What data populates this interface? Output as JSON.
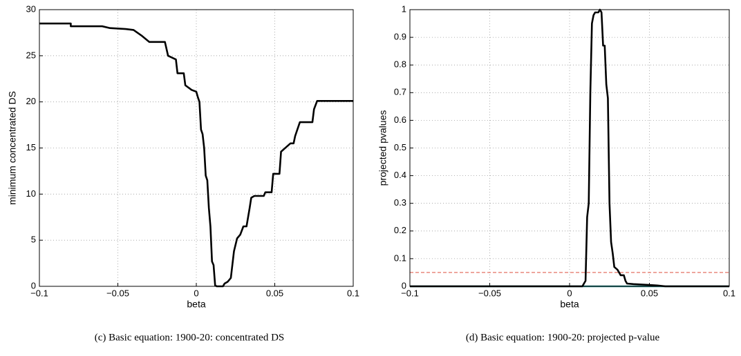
{
  "chart_data": [
    {
      "type": "line",
      "xlabel": "beta",
      "ylabel": "minimum concentrated DS",
      "caption": "(c) Basic equation: 1900-20: concentrated DS",
      "xlim": [
        -0.1,
        0.1
      ],
      "ylim": [
        0,
        30
      ],
      "xticks": [
        {
          "value": -0.1,
          "label": "−0.1"
        },
        {
          "value": -0.05,
          "label": "−0.05"
        },
        0,
        0.05,
        0.1
      ],
      "yticks": [
        0,
        5,
        10,
        15,
        20,
        25,
        30
      ],
      "grid": true,
      "series": [
        {
          "color": "#000000",
          "linestyle": "solid",
          "x": [
            -0.1,
            -0.08,
            -0.08,
            -0.06,
            -0.055,
            -0.045,
            -0.04,
            -0.035,
            -0.03,
            -0.02,
            -0.018,
            -0.013,
            -0.012,
            -0.008,
            -0.007,
            -0.003,
            0,
            0.001,
            0.002,
            0.003,
            0.004,
            0.005,
            0.006,
            0.007,
            0.008,
            0.009,
            0.01,
            0.011,
            0.012,
            0.013,
            0.017,
            0.018,
            0.02,
            0.022,
            0.024,
            0.026,
            0.028,
            0.03,
            0.032,
            0.034,
            0.035,
            0.037,
            0.043,
            0.044,
            0.048,
            0.049,
            0.053,
            0.054,
            0.058,
            0.06,
            0.062,
            0.063,
            0.066,
            0.074,
            0.075,
            0.077,
            0.1
          ],
          "values": [
            28.5,
            28.5,
            28.2,
            28.2,
            28.0,
            27.9,
            27.8,
            27.2,
            26.5,
            26.5,
            25,
            24.6,
            23.1,
            23.1,
            21.8,
            21.3,
            21.1,
            20.5,
            20,
            17,
            16.5,
            15,
            12,
            11.5,
            8.5,
            6.5,
            2.7,
            2.3,
            0.1,
            0,
            0,
            0.3,
            0.5,
            0.9,
            3.8,
            5.2,
            5.6,
            6.5,
            6.5,
            8.5,
            9.6,
            9.8,
            9.8,
            10.2,
            10.2,
            12.2,
            12.2,
            14.6,
            15.2,
            15.5,
            15.5,
            16.3,
            17.8,
            17.8,
            19.2,
            20.1,
            20.1
          ]
        }
      ]
    },
    {
      "type": "line",
      "xlabel": "beta",
      "ylabel": "projected pvalues",
      "caption": "(d) Basic equation: 1900-20: projected p-value",
      "xlim": [
        -0.1,
        0.1
      ],
      "ylim": [
        0,
        1
      ],
      "xticks": [
        {
          "value": -0.1,
          "label": "−0.1"
        },
        {
          "value": -0.05,
          "label": "−0.05"
        },
        0,
        0.05,
        0.1
      ],
      "yticks": [
        0,
        0.1,
        0.2,
        0.3,
        0.4,
        0.5,
        0.6,
        0.7,
        0.8,
        0.9,
        1
      ],
      "grid": true,
      "series": [
        {
          "color": "#2a8a8a",
          "linestyle": "solid",
          "x": [
            -0.1,
            0.1
          ],
          "values": [
            0,
            0
          ]
        },
        {
          "color": "#e06050",
          "linestyle": "dashed",
          "x": [
            -0.1,
            0.1
          ],
          "values": [
            0.05,
            0.05
          ]
        },
        {
          "color": "#000000",
          "linestyle": "solid",
          "x": [
            -0.1,
            0.008,
            0.01,
            0.011,
            0.012,
            0.013,
            0.014,
            0.015,
            0.016,
            0.018,
            0.019,
            0.02,
            0.021,
            0.022,
            0.023,
            0.024,
            0.025,
            0.026,
            0.027,
            0.028,
            0.03,
            0.032,
            0.034,
            0.035,
            0.036,
            0.04,
            0.05,
            0.055,
            0.06,
            0.1
          ],
          "values": [
            0,
            0,
            0.02,
            0.25,
            0.3,
            0.7,
            0.95,
            0.98,
            0.99,
            0.99,
            1.0,
            0.99,
            0.87,
            0.87,
            0.73,
            0.68,
            0.3,
            0.16,
            0.12,
            0.07,
            0.06,
            0.04,
            0.04,
            0.02,
            0.01,
            0.008,
            0.005,
            0.003,
            0,
            0
          ]
        }
      ]
    }
  ]
}
